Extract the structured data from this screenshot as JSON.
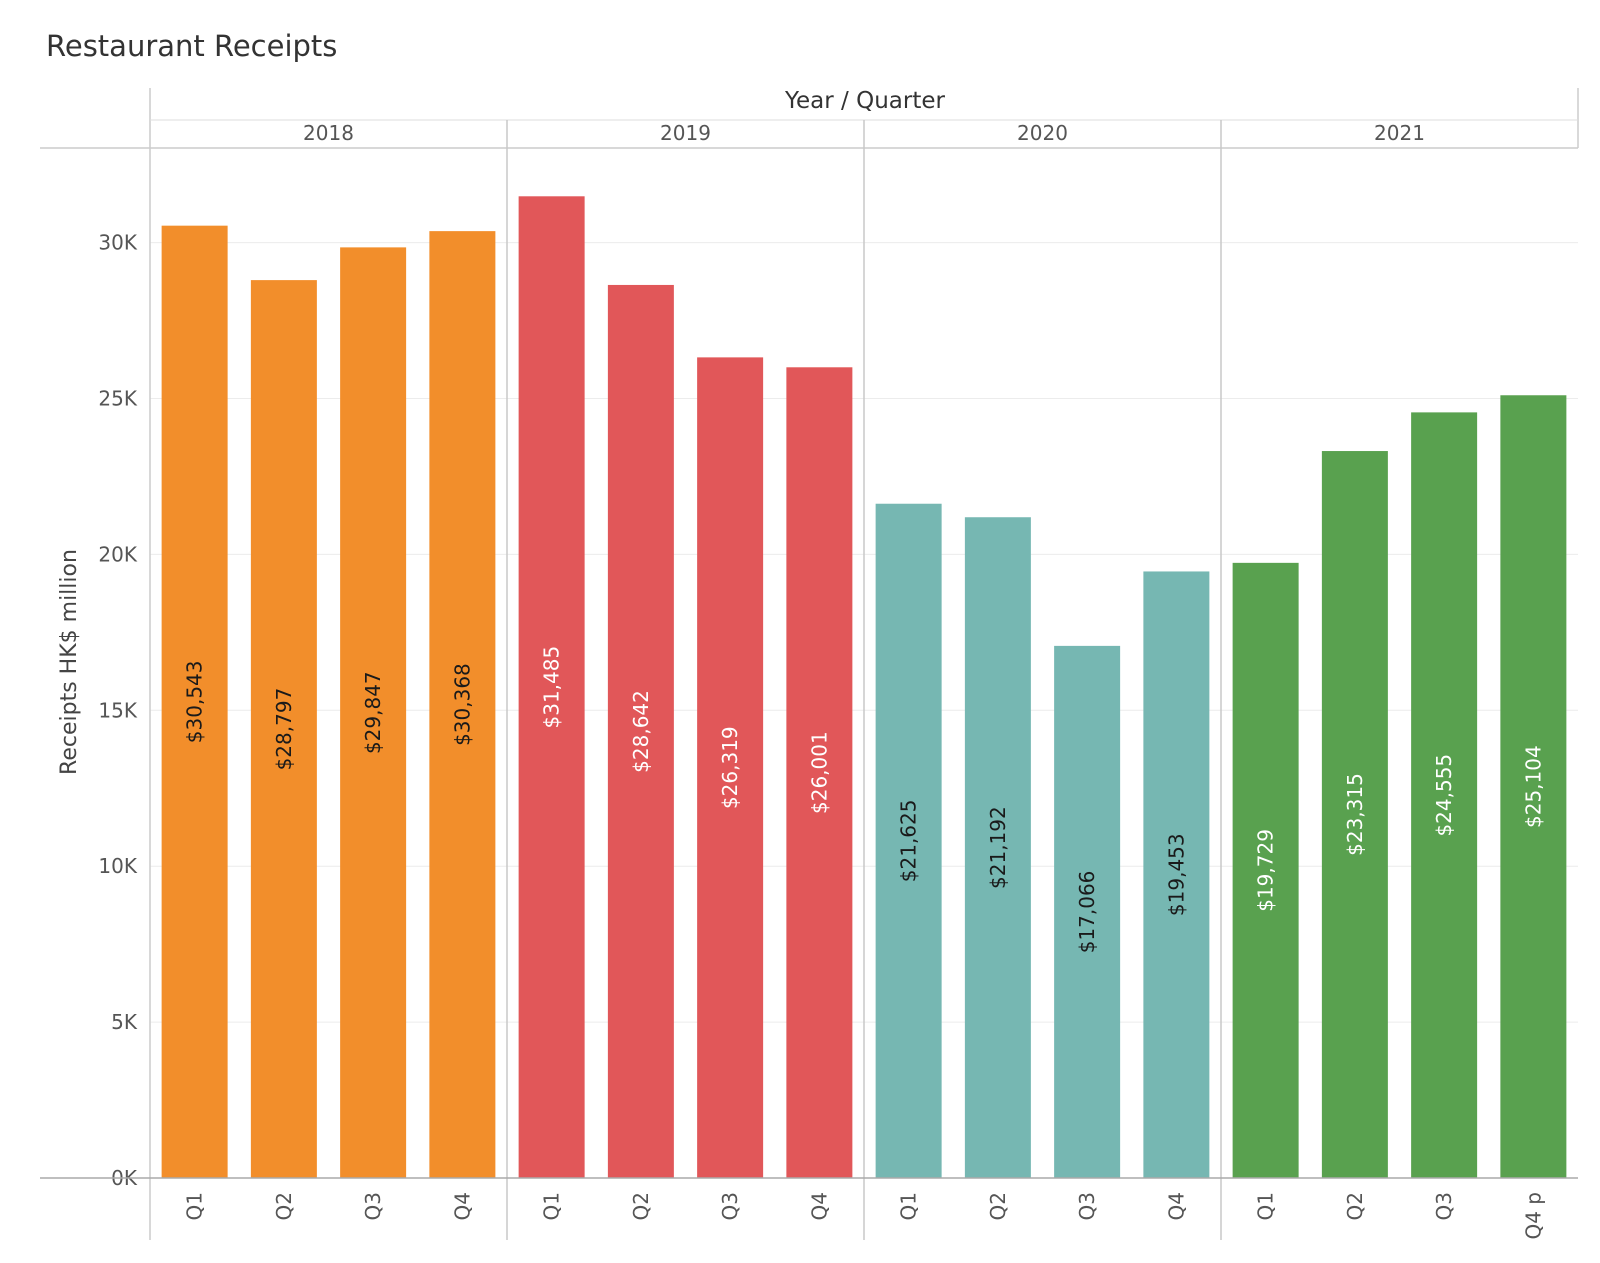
{
  "chart_data": {
    "type": "bar",
    "title": "Restaurant Receipts",
    "column_header": "Year  /  Quarter",
    "ylabel": "Receipts HK$ million",
    "ylim": [
      0,
      33000
    ],
    "y_ticks": [
      {
        "value": 0,
        "label": "0K"
      },
      {
        "value": 5000,
        "label": "5K"
      },
      {
        "value": 10000,
        "label": "10K"
      },
      {
        "value": 15000,
        "label": "15K"
      },
      {
        "value": 20000,
        "label": "20K"
      },
      {
        "value": 25000,
        "label": "25K"
      },
      {
        "value": 30000,
        "label": "30K"
      }
    ],
    "grid": true,
    "groups": [
      {
        "year": "2018",
        "color": "#F28E2B",
        "label_color": "#1a1a1a",
        "bars": [
          {
            "quarter": "Q1",
            "value": 30543,
            "label": "$30,543"
          },
          {
            "quarter": "Q2",
            "value": 28797,
            "label": "$28,797"
          },
          {
            "quarter": "Q3",
            "value": 29847,
            "label": "$29,847"
          },
          {
            "quarter": "Q4",
            "value": 30368,
            "label": "$30,368"
          }
        ]
      },
      {
        "year": "2019",
        "color": "#E15759",
        "label_color": "#ffffff",
        "bars": [
          {
            "quarter": "Q1",
            "value": 31485,
            "label": "$31,485"
          },
          {
            "quarter": "Q2",
            "value": 28642,
            "label": "$28,642"
          },
          {
            "quarter": "Q3",
            "value": 26319,
            "label": "$26,319"
          },
          {
            "quarter": "Q4",
            "value": 26001,
            "label": "$26,001"
          }
        ]
      },
      {
        "year": "2020",
        "color": "#76B7B2",
        "label_color": "#1a1a1a",
        "bars": [
          {
            "quarter": "Q1",
            "value": 21625,
            "label": "$21,625"
          },
          {
            "quarter": "Q2",
            "value": 21192,
            "label": "$21,192"
          },
          {
            "quarter": "Q3",
            "value": 17066,
            "label": "$17,066"
          },
          {
            "quarter": "Q4",
            "value": 19453,
            "label": "$19,453"
          }
        ]
      },
      {
        "year": "2021",
        "color": "#59A14F",
        "label_color": "#ffffff",
        "bars": [
          {
            "quarter": "Q1",
            "value": 19729,
            "label": "$19,729"
          },
          {
            "quarter": "Q2",
            "value": 23315,
            "label": "$23,315"
          },
          {
            "quarter": "Q3",
            "value": 24555,
            "label": "$24,555"
          },
          {
            "quarter": "Q4 p",
            "value": 25104,
            "label": "$25,104"
          }
        ]
      }
    ]
  }
}
